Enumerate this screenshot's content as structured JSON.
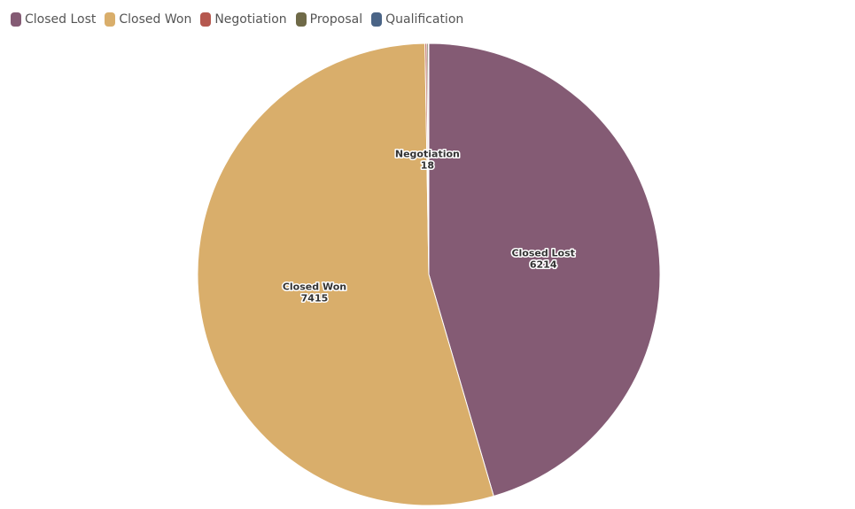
{
  "chart_data": {
    "type": "pie",
    "title": "",
    "legend_position": "top-left",
    "slices": [
      {
        "label": "Closed Lost",
        "value": 6214,
        "color": "#845b74",
        "show_label": true
      },
      {
        "label": "Closed Won",
        "value": 7415,
        "color": "#d9ae6b",
        "show_label": true
      },
      {
        "label": "Negotiation",
        "value": 18,
        "color": "#b5584f",
        "show_label": true
      },
      {
        "label": "Proposal",
        "value": 14,
        "color": "#6f6a48",
        "show_label": false
      },
      {
        "label": "Qualification",
        "value": 4,
        "color": "#4a6486",
        "show_label": false
      }
    ]
  }
}
